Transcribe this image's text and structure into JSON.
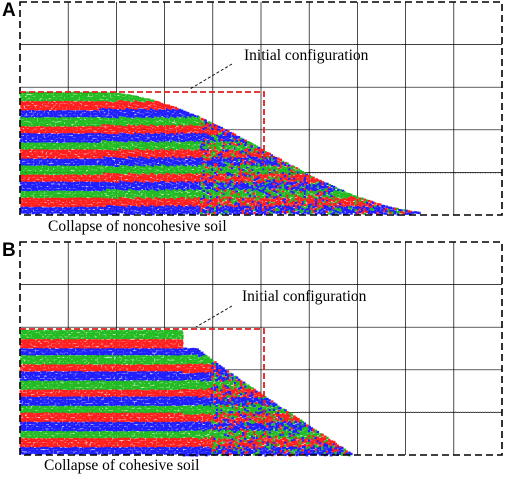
{
  "panels": [
    {
      "letter": "A",
      "annotation": "Initial configuration",
      "caption": "Collapse of noncohesive soil",
      "material": "noncohesive"
    },
    {
      "letter": "B",
      "annotation": "Initial configuration",
      "caption": "Collapse of cohesive soil",
      "material": "cohesive"
    }
  ],
  "colors": {
    "grid": "#000000",
    "frame": "#000000",
    "initial_config": "#e02020",
    "layer_colors": [
      "#22bb22",
      "#ff1f1f",
      "#1f1fff"
    ]
  }
}
